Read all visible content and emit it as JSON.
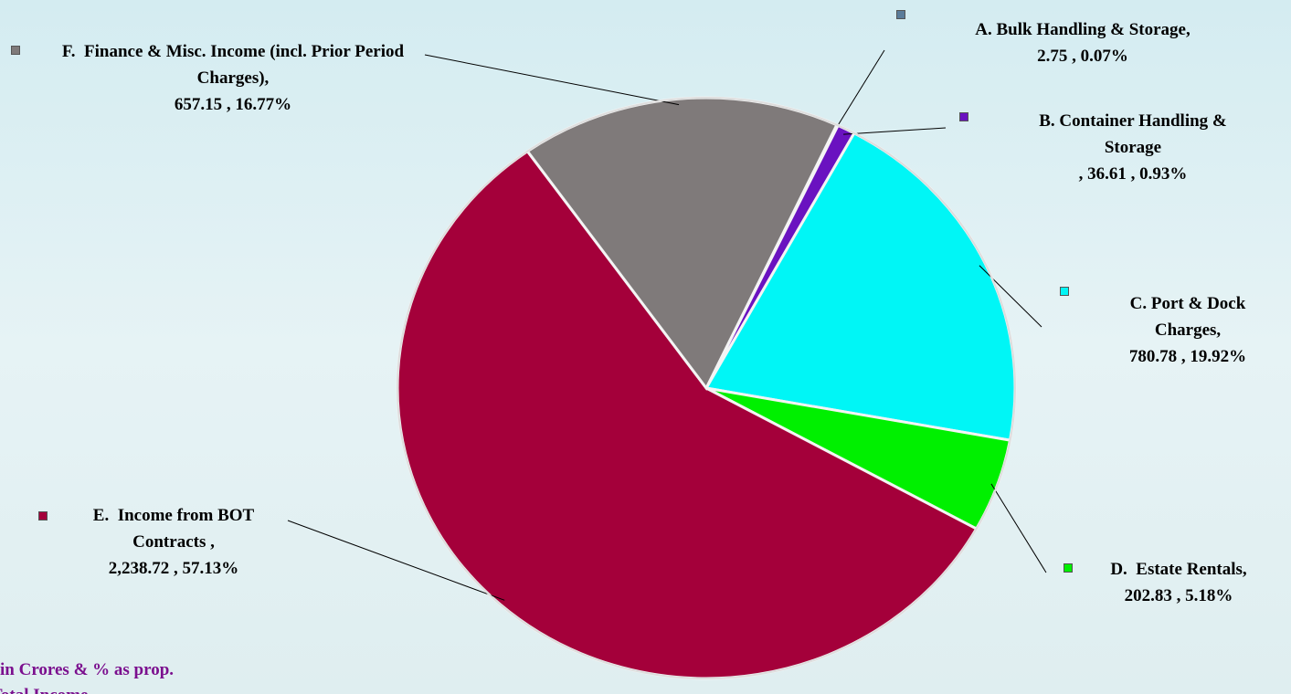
{
  "chart_data": {
    "type": "pie",
    "categories": [
      "A. Bulk Handling & Storage,",
      "B. Container Handling & Storage",
      "C. Port & Dock Charges,",
      "D.  Estate Rentals,",
      "E.  Income from BOT Contracts ,",
      "F.  Finance & Misc. Income (incl. Prior Period Charges),"
    ],
    "values": [
      2.75,
      36.61,
      780.78,
      202.83,
      2238.72,
      657.15
    ],
    "value_labels": [
      "2.75 , 0.07%",
      ", 36.61 , 0.93%",
      "780.78 , 19.92%",
      "202.83 , 5.18%",
      "2,238.72 , 57.13%",
      "657.15 , 16.77%"
    ],
    "colors": [
      "#5b7c9a",
      "#6a12c0",
      "#00f6f6",
      "#00f000",
      "#a4003a",
      "#7f7a7a"
    ],
    "note": [
      "in Crores & % as prop.",
      "Total Income"
    ]
  }
}
